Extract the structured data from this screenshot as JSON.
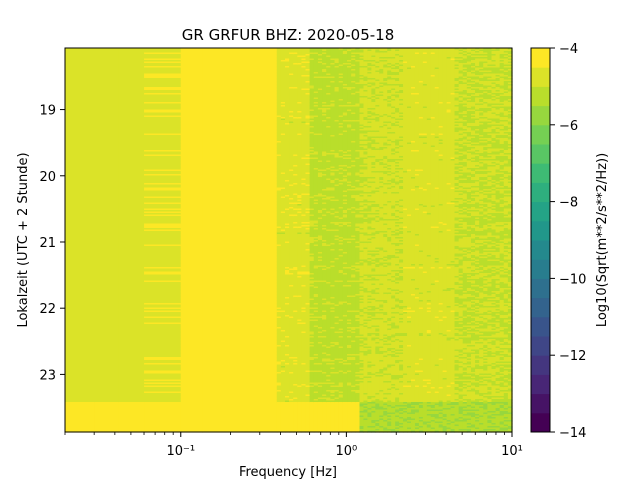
{
  "chart_data": {
    "type": "heatmap",
    "title": "GR GRFUR  BHZ: 2020-05-18",
    "xlabel": "Frequency [Hz]",
    "ylabel": "Lokalzeit (UTC + 2 Stunde)",
    "colorbar_label": "Log10(Sqrt(m**2/s**2/Hz))",
    "x_scale": "log",
    "xlim": [
      0.02,
      10
    ],
    "x_ticks": [
      {
        "value": 0.1,
        "label": "10⁻¹"
      },
      {
        "value": 1,
        "label": "10⁰"
      },
      {
        "value": 10,
        "label": "10¹"
      }
    ],
    "ylim": [
      18.07,
      23.87
    ],
    "y_inverted": true,
    "y_ticks": [
      {
        "value": 19,
        "label": "19"
      },
      {
        "value": 20,
        "label": "20"
      },
      {
        "value": 21,
        "label": "21"
      },
      {
        "value": 22,
        "label": "22"
      },
      {
        "value": 23,
        "label": "23"
      }
    ],
    "colorbar": {
      "range": [
        -14,
        -4
      ],
      "ticks": [
        {
          "value": -4,
          "label": "−4"
        },
        {
          "value": -6,
          "label": "−6"
        },
        {
          "value": -8,
          "label": "−8"
        },
        {
          "value": -10,
          "label": "−10"
        },
        {
          "value": -12,
          "label": "−12"
        },
        {
          "value": -14,
          "label": "−14"
        }
      ],
      "colormap": "viridis",
      "levels": 20
    },
    "frequency_bands": [
      {
        "f_min": 0.02,
        "f_max": 0.03,
        "value": -4.6
      },
      {
        "f_min": 0.03,
        "f_max": 0.042,
        "value": -4.65
      },
      {
        "f_min": 0.042,
        "f_max": 0.06,
        "value": -4.85
      },
      {
        "f_min": 0.06,
        "f_max": 0.1,
        "value": -4.55
      },
      {
        "f_min": 0.1,
        "f_max": 0.135,
        "value": -4.4
      },
      {
        "f_min": 0.135,
        "f_max": 0.38,
        "value": -4.05
      },
      {
        "f_min": 0.38,
        "f_max": 0.6,
        "value": -4.7
      },
      {
        "f_min": 0.6,
        "f_max": 1.2,
        "value": -5.15
      },
      {
        "f_min": 1.2,
        "f_max": 2.2,
        "value": -4.9
      },
      {
        "f_min": 2.2,
        "f_max": 4.5,
        "value": -4.75
      },
      {
        "f_min": 4.5,
        "f_max": 10,
        "value": -5.0
      }
    ],
    "late_interval": {
      "t_min": 23.4,
      "t_max": 23.87,
      "value_low_freq": -4.1,
      "value_high_freq": -5.4
    }
  }
}
